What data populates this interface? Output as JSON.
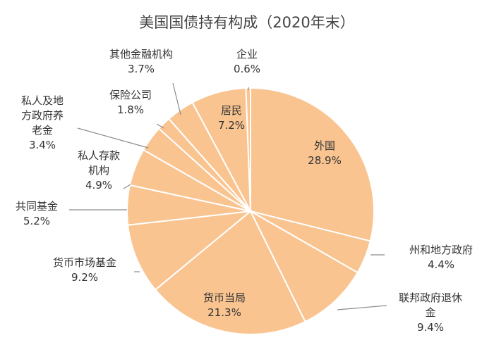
{
  "chart_data": {
    "type": "pie",
    "title": "美国国债持有构成（2020年末）",
    "start_angle_deg": 0,
    "direction": "clockwise",
    "slice_fill": "#f9c490",
    "slice_stroke": "#ffffff",
    "leader_color": "#8c8c8c",
    "slices": [
      {
        "name": "外国",
        "value": 28.9,
        "value_label": "28.9%",
        "name_lines": [
          "外国"
        ]
      },
      {
        "name": "州和地方政府",
        "value": 4.4,
        "value_label": "4.4%",
        "name_lines": [
          "州和地方政府"
        ]
      },
      {
        "name": "联邦政府退休金",
        "value": 9.4,
        "value_label": "9.4%",
        "name_lines": [
          "联邦政府退休",
          "金"
        ]
      },
      {
        "name": "货币当局",
        "value": 21.3,
        "value_label": "21.3%",
        "name_lines": [
          "货币当局"
        ]
      },
      {
        "name": "货币市场基金",
        "value": 9.2,
        "value_label": "9.2%",
        "name_lines": [
          "货币市场基金"
        ]
      },
      {
        "name": "共同基金",
        "value": 5.2,
        "value_label": "5.2%",
        "name_lines": [
          "共同基金"
        ]
      },
      {
        "name": "私人存款机构",
        "value": 4.9,
        "value_label": "4.9%",
        "name_lines": [
          "私人存款",
          "机构"
        ]
      },
      {
        "name": "私人及地方政府养老金",
        "value": 3.4,
        "value_label": "3.4%",
        "name_lines": [
          "私人及地",
          "方政府养",
          "老金"
        ]
      },
      {
        "name": "保险公司",
        "value": 1.8,
        "value_label": "1.8%",
        "name_lines": [
          "保险公司"
        ]
      },
      {
        "name": "其他金融机构",
        "value": 3.7,
        "value_label": "3.7%",
        "name_lines": [
          "其他金融机构"
        ]
      },
      {
        "name": "居民",
        "value": 7.2,
        "value_label": "7.2%",
        "name_lines": [
          "居民"
        ]
      },
      {
        "name": "企业",
        "value": 0.6,
        "value_label": "0.6%",
        "name_lines": [
          "企业"
        ]
      }
    ]
  }
}
